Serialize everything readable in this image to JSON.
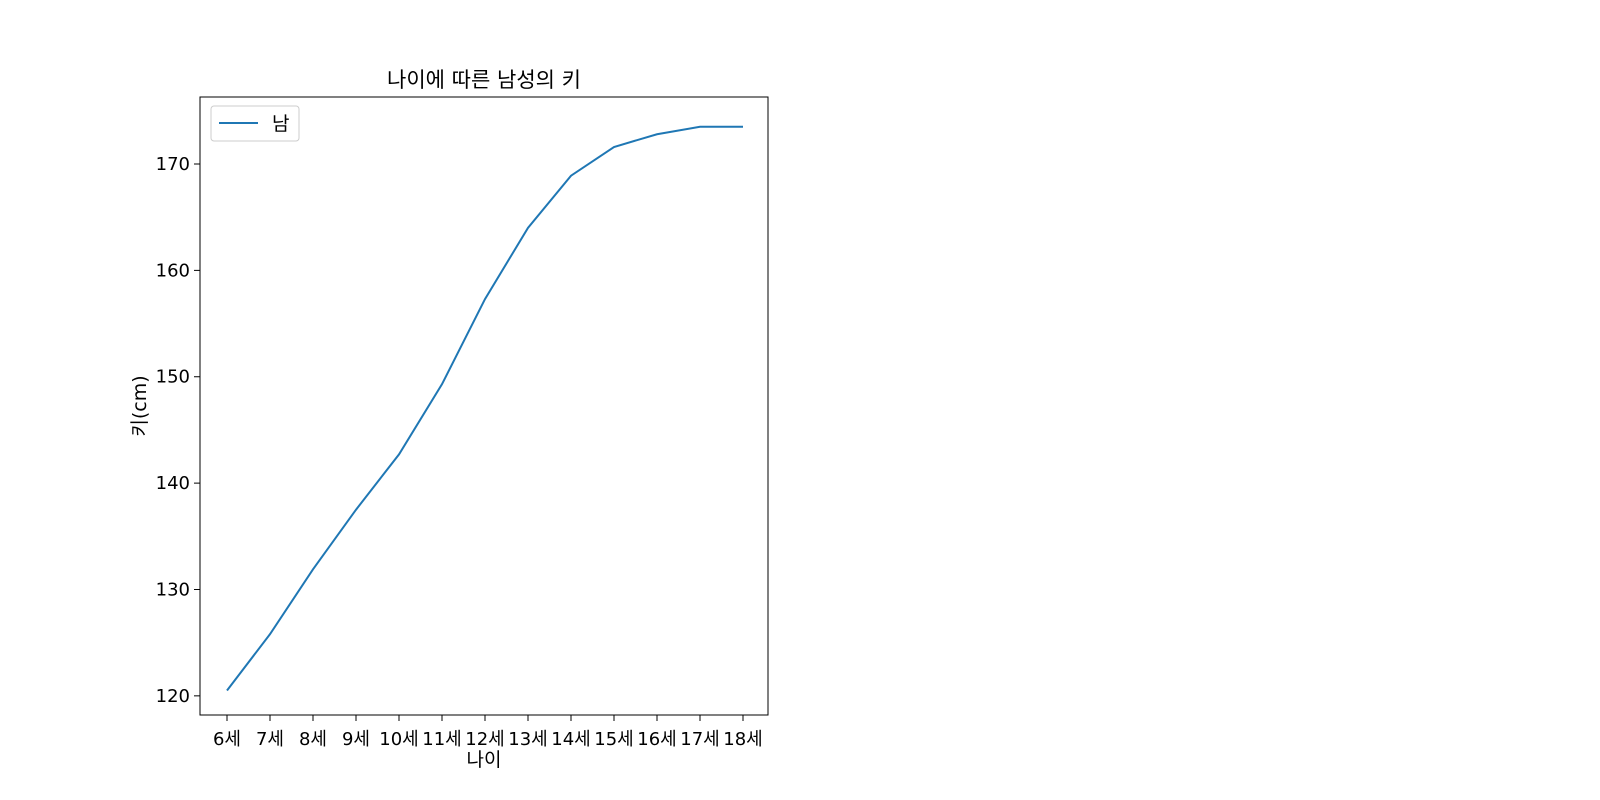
{
  "chart_data": {
    "type": "line",
    "title": "나이에 따른 남성의 키",
    "xlabel": "나이",
    "ylabel": "키(cm)",
    "categories": [
      "6세",
      "7세",
      "8세",
      "9세",
      "10세",
      "11세",
      "12세",
      "13세",
      "14세",
      "15세",
      "16세",
      "17세",
      "18세"
    ],
    "series": [
      {
        "name": "남",
        "color": "#1f77b4",
        "values": [
          120.5,
          125.8,
          131.9,
          137.5,
          142.7,
          149.3,
          157.3,
          164.0,
          168.9,
          171.6,
          172.8,
          173.5,
          173.5
        ]
      }
    ],
    "yticks": [
      120,
      130,
      140,
      150,
      160,
      170
    ],
    "ylim": [
      118.2,
      176.3
    ],
    "grid": false,
    "legend_position": "upper-left"
  }
}
